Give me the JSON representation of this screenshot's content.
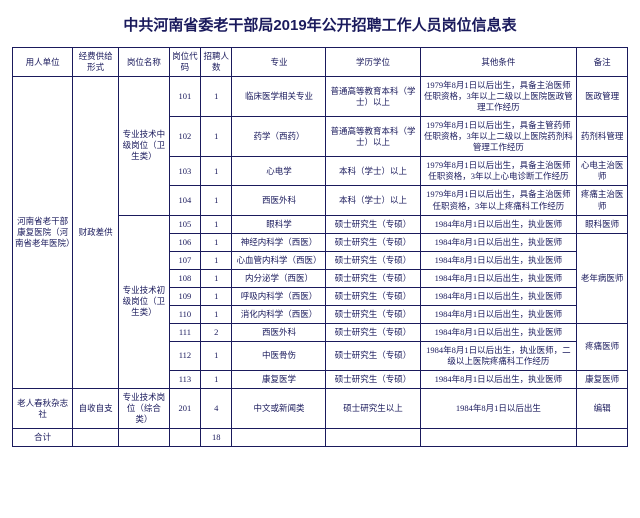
{
  "title": "中共河南省委老干部局2019年公开招聘工作人员岗位信息表",
  "headers": {
    "unit": "用人单位",
    "fund": "经费供给形式",
    "post": "岗位名称",
    "code": "岗位代码",
    "num": "招聘人数",
    "major": "专业",
    "edu": "学历学位",
    "cond": "其他条件",
    "note": "备注"
  },
  "unit1": "河南省老干部康复医院（河南省老年医院）",
  "fund1": "财政差供",
  "post_mid": "专业技术中级岗位（卫生类）",
  "post_jr": "专业技术初级岗位（卫生类）",
  "rows": [
    {
      "code": "101",
      "num": "1",
      "major": "临床医学相关专业",
      "edu": "普通高等教育本科（学士）以上",
      "cond": "1979年8月1日以后出生，具备主治医师任职资格，3年以上二级以上医院医政管理工作经历",
      "note": "医政管理"
    },
    {
      "code": "102",
      "num": "1",
      "major": "药学（西药）",
      "edu": "普通高等教育本科（学士）以上",
      "cond": "1979年8月1日以后出生，具备主管药师任职资格，3年以上二级以上医院药剂科管理工作经历",
      "note": "药剂科管理"
    },
    {
      "code": "103",
      "num": "1",
      "major": "心电学",
      "edu": "本科（学士）以上",
      "cond": "1979年8月1日以后出生，具备主治医师任职资格，3年以上心电诊断工作经历",
      "note": "心电主治医师"
    },
    {
      "code": "104",
      "num": "1",
      "major": "西医外科",
      "edu": "本科（学士）以上",
      "cond": "1979年8月1日以后出生，具备主治医师任职资格，3年以上疼痛科工作经历",
      "note": "疼痛主治医师"
    },
    {
      "code": "105",
      "num": "1",
      "major": "眼科学",
      "edu": "硕士研究生（专硕）",
      "cond": "1984年8月1日以后出生，执业医师",
      "note": "眼科医师"
    },
    {
      "code": "106",
      "num": "1",
      "major": "神经内科学（西医）",
      "edu": "硕士研究生（专硕）",
      "cond": "1984年8月1日以后出生，执业医师",
      "note": ""
    },
    {
      "code": "107",
      "num": "1",
      "major": "心血管内科学（西医）",
      "edu": "硕士研究生（专硕）",
      "cond": "1984年8月1日以后出生，执业医师",
      "note": ""
    },
    {
      "code": "108",
      "num": "1",
      "major": "内分泌学（西医）",
      "edu": "硕士研究生（专硕）",
      "cond": "1984年8月1日以后出生，执业医师",
      "note": ""
    },
    {
      "code": "109",
      "num": "1",
      "major": "呼吸内科学（西医）",
      "edu": "硕士研究生（专硕）",
      "cond": "1984年8月1日以后出生，执业医师",
      "note": ""
    },
    {
      "code": "110",
      "num": "1",
      "major": "消化内科学（西医）",
      "edu": "硕士研究生（专硕）",
      "cond": "1984年8月1日以后出生，执业医师",
      "note": ""
    },
    {
      "code": "111",
      "num": "2",
      "major": "西医外科",
      "edu": "硕士研究生（专硕）",
      "cond": "1984年8月1日以后出生，执业医师",
      "note": ""
    },
    {
      "code": "112",
      "num": "1",
      "major": "中医骨伤",
      "edu": "硕士研究生（专硕）",
      "cond": "1984年8月1日以后出生，执业医师，二级以上医院疼痛科工作经历",
      "note": ""
    },
    {
      "code": "113",
      "num": "1",
      "major": "康复医学",
      "edu": "硕士研究生（专硕）",
      "cond": "1984年8月1日以后出生，执业医师",
      "note": "康复医师"
    }
  ],
  "note_old": "老年病医师",
  "note_pain": "疼痛医师",
  "unit2": "老人春秋杂志社",
  "fund2": "自收自支",
  "post2": "专业技术岗位（综合类）",
  "row2": {
    "code": "201",
    "num": "4",
    "major": "中文或新闻类",
    "edu": "硕士研究生以上",
    "cond": "1984年8月1日以后出生",
    "note": "编辑"
  },
  "total_label": "合计",
  "total_num": "18"
}
